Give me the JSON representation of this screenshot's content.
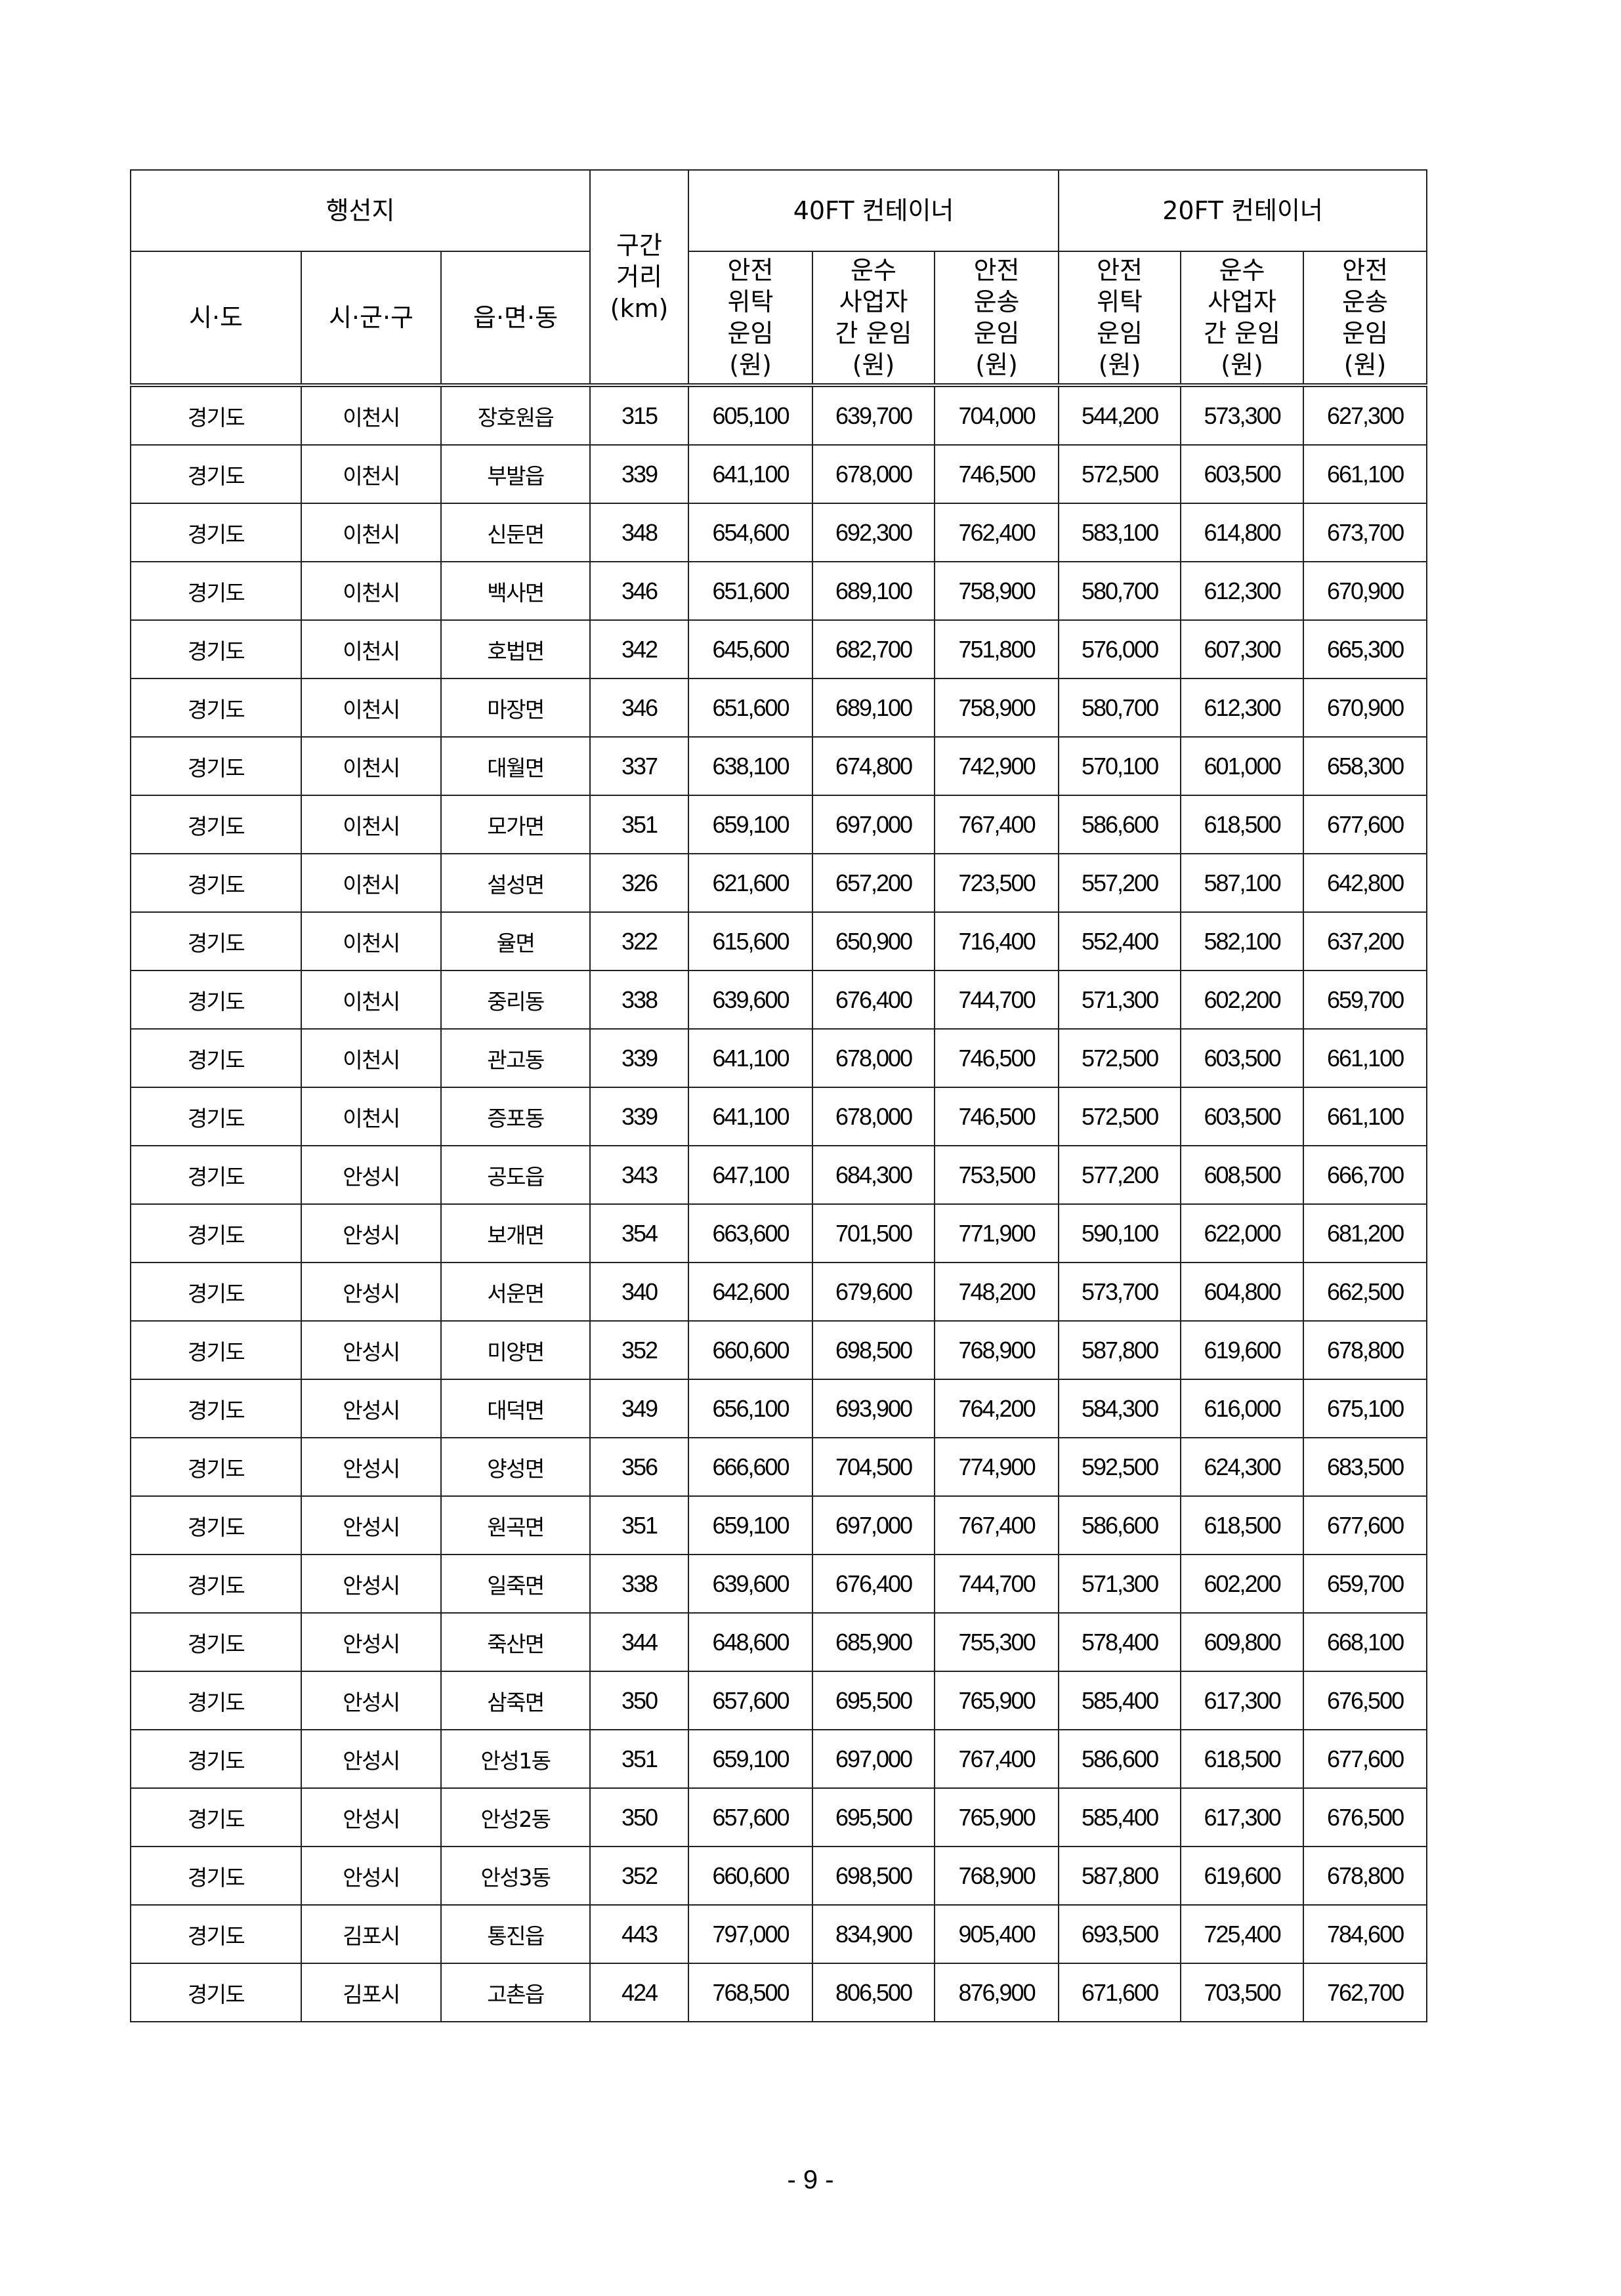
{
  "header": {
    "destination": "행선지",
    "distance": "구간\n거리\n(km)",
    "ft40": "40FT 컨테이너",
    "ft20": "20FT 컨테이너",
    "sido": "시·도",
    "sigungu": "시·군·구",
    "eupmyeondong": "읍·면·동",
    "safety_consign": "안전\n위탁\n운임\n(원)",
    "carrier_between": "운수\n사업자\n간 운임\n(원)",
    "safety_transport": "안전\n운송\n운임\n(원)"
  },
  "rows": [
    [
      "경기도",
      "이천시",
      "장호원읍",
      "315",
      "605,100",
      "639,700",
      "704,000",
      "544,200",
      "573,300",
      "627,300"
    ],
    [
      "경기도",
      "이천시",
      "부발읍",
      "339",
      "641,100",
      "678,000",
      "746,500",
      "572,500",
      "603,500",
      "661,100"
    ],
    [
      "경기도",
      "이천시",
      "신둔면",
      "348",
      "654,600",
      "692,300",
      "762,400",
      "583,100",
      "614,800",
      "673,700"
    ],
    [
      "경기도",
      "이천시",
      "백사면",
      "346",
      "651,600",
      "689,100",
      "758,900",
      "580,700",
      "612,300",
      "670,900"
    ],
    [
      "경기도",
      "이천시",
      "호법면",
      "342",
      "645,600",
      "682,700",
      "751,800",
      "576,000",
      "607,300",
      "665,300"
    ],
    [
      "경기도",
      "이천시",
      "마장면",
      "346",
      "651,600",
      "689,100",
      "758,900",
      "580,700",
      "612,300",
      "670,900"
    ],
    [
      "경기도",
      "이천시",
      "대월면",
      "337",
      "638,100",
      "674,800",
      "742,900",
      "570,100",
      "601,000",
      "658,300"
    ],
    [
      "경기도",
      "이천시",
      "모가면",
      "351",
      "659,100",
      "697,000",
      "767,400",
      "586,600",
      "618,500",
      "677,600"
    ],
    [
      "경기도",
      "이천시",
      "설성면",
      "326",
      "621,600",
      "657,200",
      "723,500",
      "557,200",
      "587,100",
      "642,800"
    ],
    [
      "경기도",
      "이천시",
      "율면",
      "322",
      "615,600",
      "650,900",
      "716,400",
      "552,400",
      "582,100",
      "637,200"
    ],
    [
      "경기도",
      "이천시",
      "중리동",
      "338",
      "639,600",
      "676,400",
      "744,700",
      "571,300",
      "602,200",
      "659,700"
    ],
    [
      "경기도",
      "이천시",
      "관고동",
      "339",
      "641,100",
      "678,000",
      "746,500",
      "572,500",
      "603,500",
      "661,100"
    ],
    [
      "경기도",
      "이천시",
      "증포동",
      "339",
      "641,100",
      "678,000",
      "746,500",
      "572,500",
      "603,500",
      "661,100"
    ],
    [
      "경기도",
      "안성시",
      "공도읍",
      "343",
      "647,100",
      "684,300",
      "753,500",
      "577,200",
      "608,500",
      "666,700"
    ],
    [
      "경기도",
      "안성시",
      "보개면",
      "354",
      "663,600",
      "701,500",
      "771,900",
      "590,100",
      "622,000",
      "681,200"
    ],
    [
      "경기도",
      "안성시",
      "서운면",
      "340",
      "642,600",
      "679,600",
      "748,200",
      "573,700",
      "604,800",
      "662,500"
    ],
    [
      "경기도",
      "안성시",
      "미양면",
      "352",
      "660,600",
      "698,500",
      "768,900",
      "587,800",
      "619,600",
      "678,800"
    ],
    [
      "경기도",
      "안성시",
      "대덕면",
      "349",
      "656,100",
      "693,900",
      "764,200",
      "584,300",
      "616,000",
      "675,100"
    ],
    [
      "경기도",
      "안성시",
      "양성면",
      "356",
      "666,600",
      "704,500",
      "774,900",
      "592,500",
      "624,300",
      "683,500"
    ],
    [
      "경기도",
      "안성시",
      "원곡면",
      "351",
      "659,100",
      "697,000",
      "767,400",
      "586,600",
      "618,500",
      "677,600"
    ],
    [
      "경기도",
      "안성시",
      "일죽면",
      "338",
      "639,600",
      "676,400",
      "744,700",
      "571,300",
      "602,200",
      "659,700"
    ],
    [
      "경기도",
      "안성시",
      "죽산면",
      "344",
      "648,600",
      "685,900",
      "755,300",
      "578,400",
      "609,800",
      "668,100"
    ],
    [
      "경기도",
      "안성시",
      "삼죽면",
      "350",
      "657,600",
      "695,500",
      "765,900",
      "585,400",
      "617,300",
      "676,500"
    ],
    [
      "경기도",
      "안성시",
      "안성1동",
      "351",
      "659,100",
      "697,000",
      "767,400",
      "586,600",
      "618,500",
      "677,600"
    ],
    [
      "경기도",
      "안성시",
      "안성2동",
      "350",
      "657,600",
      "695,500",
      "765,900",
      "585,400",
      "617,300",
      "676,500"
    ],
    [
      "경기도",
      "안성시",
      "안성3동",
      "352",
      "660,600",
      "698,500",
      "768,900",
      "587,800",
      "619,600",
      "678,800"
    ],
    [
      "경기도",
      "김포시",
      "통진읍",
      "443",
      "797,000",
      "834,900",
      "905,400",
      "693,500",
      "725,400",
      "784,600"
    ],
    [
      "경기도",
      "김포시",
      "고촌읍",
      "424",
      "768,500",
      "806,500",
      "876,900",
      "671,600",
      "703,500",
      "762,700"
    ]
  ],
  "page_number": "- 9 -"
}
